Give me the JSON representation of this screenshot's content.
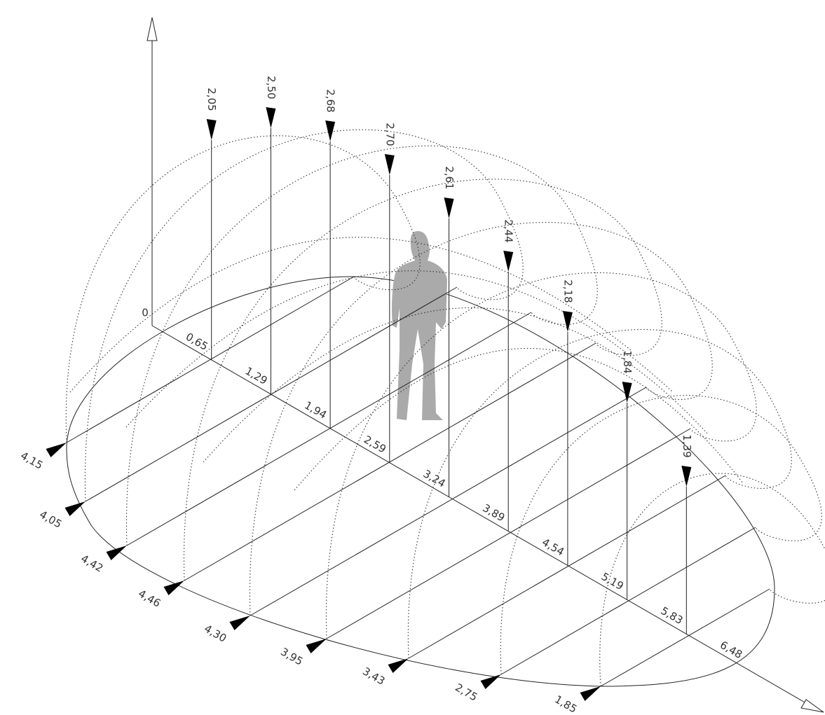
{
  "axis_origin": "0",
  "axis_labels": [
    "0,65",
    "1,29",
    "1,94",
    "2,59",
    "3,24",
    "3,89",
    "4,54",
    "5,19",
    "5,83",
    "6,48"
  ],
  "heights": [
    "2,05",
    "2,50",
    "2,68",
    "2,70",
    "2,61",
    "2,44",
    "2,18",
    "1,84",
    "1,39"
  ],
  "widths": [
    "4,15",
    "4,05",
    "4,42",
    "4,46",
    "4,30",
    "3,95",
    "3,43",
    "2,75",
    "1,85"
  ]
}
